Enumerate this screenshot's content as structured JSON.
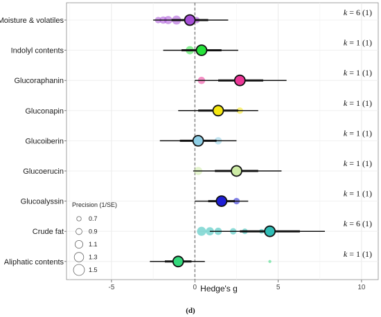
{
  "chart_data": {
    "type": "scatter",
    "subtype": "forest-plot",
    "xlabel": "Hedge's g",
    "xlim": [
      -7.7,
      11
    ],
    "xticks": [
      -5,
      0,
      5,
      10
    ],
    "grid": true,
    "reference_line": 0,
    "panel_label": "(d)",
    "legend": {
      "title": "Precision (1/SE)",
      "placement": "bottom-left",
      "values": [
        0.7,
        0.9,
        1.1,
        1.3,
        1.5
      ],
      "labels": [
        "0.7",
        "0.9",
        "1.1",
        "1.3",
        "1.5"
      ]
    },
    "rows": [
      {
        "label": "Moisture & volatiles",
        "k_label": "k = 6 (1)",
        "k": 6,
        "k_paren": 1,
        "color": "#a64fd6",
        "est": -0.3,
        "ci95": [
          -2.5,
          2.0
        ],
        "ci_inner": [
          -1.4,
          0.8
        ],
        "studies": [
          {
            "g": -2.2,
            "p": 0.9
          },
          {
            "g": -1.9,
            "p": 1.0
          },
          {
            "g": -1.6,
            "p": 1.1
          },
          {
            "g": -1.1,
            "p": 1.2
          },
          {
            "g": -0.3,
            "p": 1.0
          },
          {
            "g": 0.1,
            "p": 0.9
          }
        ]
      },
      {
        "label": "Indolyl contents",
        "k_label": "k = 1 (1)",
        "k": 1,
        "k_paren": 1,
        "color": "#27e23b",
        "est": 0.4,
        "ci95": [
          -1.9,
          2.6
        ],
        "ci_inner": [
          -0.8,
          1.6
        ],
        "studies": [
          {
            "g": -0.3,
            "p": 1.1
          }
        ]
      },
      {
        "label": "Glucoraphanin",
        "k_label": "k = 1 (1)",
        "k": 1,
        "k_paren": 1,
        "color": "#ec3797",
        "est": 2.7,
        "ci95": [
          0.0,
          5.5
        ],
        "ci_inner": [
          1.4,
          4.1
        ],
        "studies": [
          {
            "g": 0.4,
            "p": 1.0
          }
        ]
      },
      {
        "label": "Gluconapin",
        "k_label": "k = 1 (1)",
        "k": 1,
        "k_paren": 1,
        "color": "#f5e711",
        "est": 1.4,
        "ci95": [
          -1.0,
          3.8
        ],
        "ci_inner": [
          0.2,
          2.6
        ],
        "studies": [
          {
            "g": 2.7,
            "p": 0.9
          }
        ]
      },
      {
        "label": "Glucoiberin",
        "k_label": "k = 1 (1)",
        "k": 1,
        "k_paren": 1,
        "color": "#8fcfe6",
        "est": 0.2,
        "ci95": [
          -2.1,
          2.5
        ],
        "ci_inner": [
          -0.9,
          1.3
        ],
        "studies": [
          {
            "g": 1.4,
            "p": 1.0
          }
        ]
      },
      {
        "label": "Glucoerucin",
        "k_label": "k = 1 (1)",
        "k": 1,
        "k_paren": 1,
        "color": "#cdeba5",
        "est": 2.5,
        "ci95": [
          -0.1,
          5.2
        ],
        "ci_inner": [
          1.2,
          3.8
        ],
        "studies": [
          {
            "g": 0.2,
            "p": 1.1
          }
        ]
      },
      {
        "label": "Glucoalyssin",
        "k_label": "k = 1 (1)",
        "k": 1,
        "k_paren": 1,
        "color": "#1f1fd6",
        "est": 1.6,
        "ci95": [
          0.0,
          3.2
        ],
        "ci_inner": [
          0.8,
          2.4
        ],
        "studies": [
          {
            "g": 2.5,
            "p": 0.9
          }
        ]
      },
      {
        "label": "Crude fat",
        "k_label": "k = 6 (1)",
        "k": 6,
        "k_paren": 1,
        "color": "#2fbdb6",
        "est": 4.5,
        "ci95": [
          0.9,
          7.8
        ],
        "ci_inner": [
          2.7,
          6.3
        ],
        "studies": [
          {
            "g": 0.4,
            "p": 1.2
          },
          {
            "g": 0.9,
            "p": 1.1
          },
          {
            "g": 1.4,
            "p": 1.0
          },
          {
            "g": 2.3,
            "p": 0.9
          },
          {
            "g": 3.0,
            "p": 0.8
          },
          {
            "g": 4.0,
            "p": 0.7
          }
        ]
      },
      {
        "label": "Aliphatic contents",
        "k_label": "k = 1 (1)",
        "k": 1,
        "k_paren": 1,
        "color": "#34d97c",
        "est": -1.0,
        "ci95": [
          -2.7,
          0.6
        ],
        "ci_inner": [
          -1.8,
          -0.2
        ],
        "studies": [
          {
            "g": 4.5,
            "p": 0.5
          }
        ]
      }
    ]
  }
}
